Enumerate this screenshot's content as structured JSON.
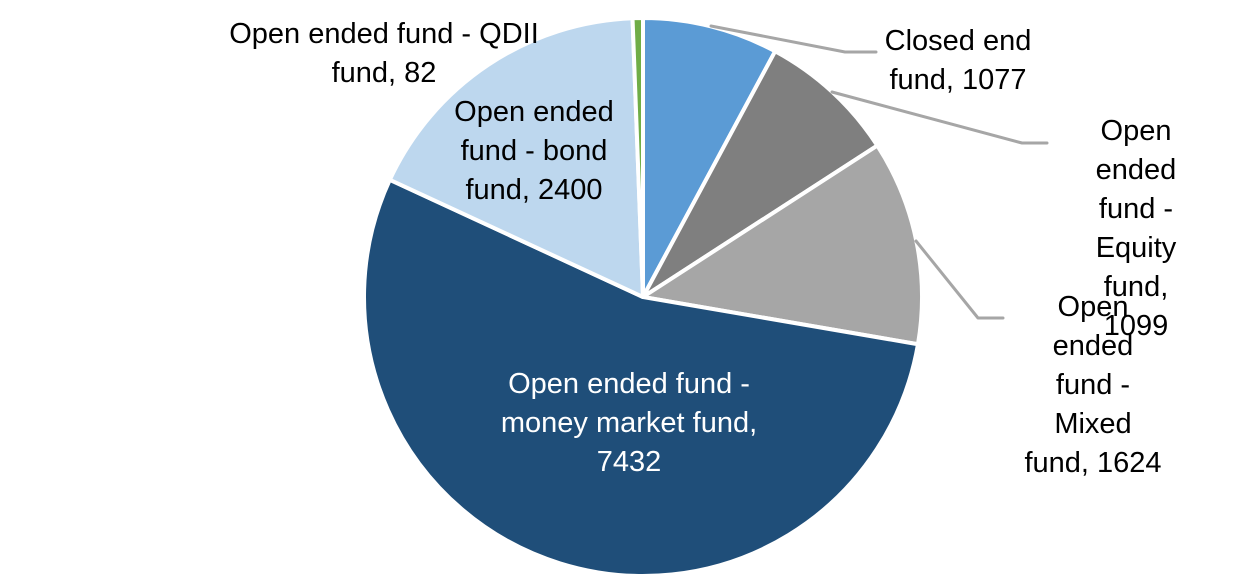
{
  "chart_data": {
    "type": "pie",
    "title": "",
    "categories": [
      "Closed end fund",
      "Open ended fund - Equity fund",
      "Open ended fund - Mixed fund",
      "Open ended fund - money market fund",
      "Open ended fund - bond fund",
      "Open ended fund - QDII fund"
    ],
    "values": [
      1077,
      1099,
      1624,
      7432,
      2400,
      82
    ],
    "colors": [
      "#5B9BD5",
      "#7F7F7F",
      "#A6A6A6",
      "#1F4E79",
      "#BDD7EE",
      "#70AD47"
    ],
    "start_angle_deg": 0,
    "direction": "clockwise",
    "legend_position": "none",
    "data_labels": "category-and-value",
    "slice_border_color": "#FFFFFF",
    "leader_line_color": "#A6A6A6"
  },
  "labels": {
    "qdii": {
      "text": "Open ended fund - QDII\nfund, 82"
    },
    "closed_end": {
      "text": "Closed end\nfund, 1077"
    },
    "equity": {
      "text": "Open ended\nfund - Equity\nfund, 1099"
    },
    "mixed": {
      "text": "Open ended\nfund - Mixed\nfund, 1624"
    },
    "bond": {
      "text": "Open ended\nfund - bond\nfund, 2400"
    },
    "money_market": {
      "text": "Open ended fund -\nmoney market fund,\n7432"
    }
  }
}
